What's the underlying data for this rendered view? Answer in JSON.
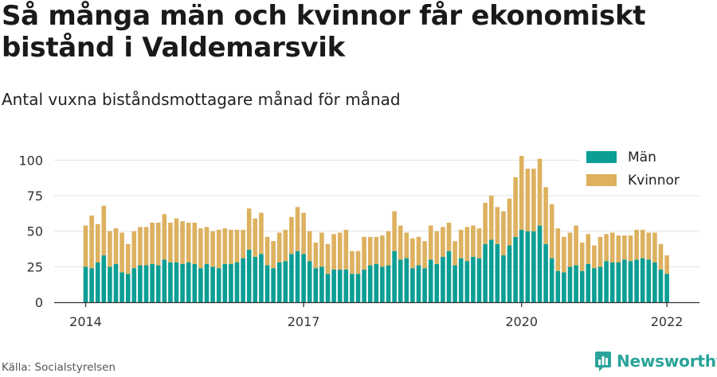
{
  "header": {
    "title": "Så många män och kvinnor får ekonomiskt bistånd i Valdemarsvik",
    "subtitle": "Antal vuxna biståndsmottagare månad för månad"
  },
  "footer": {
    "source": "Källa: Socialstyrelsen",
    "brand": "Newsworthy"
  },
  "colors": {
    "men": "#0b9e94",
    "women": "#ddb15f",
    "grid": "#e2e2e2",
    "axis": "#333333",
    "brand": "#2aa39a"
  },
  "chart_data": {
    "type": "bar",
    "stacked": true,
    "x_start": "2014-01",
    "x_ticks": [
      "2014",
      "2017",
      "2020",
      "2022"
    ],
    "y_ticks": [
      0,
      25,
      50,
      75,
      100
    ],
    "ylim": [
      0,
      110
    ],
    "grid": true,
    "legend_position": "top-right",
    "series": [
      {
        "name": "Män",
        "values": [
          25,
          24,
          28,
          33,
          25,
          27,
          21,
          20,
          24,
          26,
          26,
          27,
          26,
          30,
          28,
          28,
          27,
          28,
          27,
          24,
          27,
          25,
          24,
          27,
          27,
          28,
          31,
          37,
          32,
          34,
          26,
          24,
          28,
          29,
          34,
          36,
          34,
          29,
          24,
          25,
          20,
          23,
          23,
          23,
          20,
          20,
          23,
          26,
          27,
          25,
          26,
          36,
          30,
          31,
          24,
          26,
          24,
          30,
          27,
          32,
          36,
          26,
          31,
          29,
          32,
          31,
          41,
          44,
          41,
          33,
          40,
          46,
          51,
          50,
          50,
          54,
          41,
          31,
          22,
          21,
          25,
          26,
          22,
          27,
          24,
          25,
          29,
          28,
          28,
          30,
          29,
          30,
          31,
          30,
          28,
          23,
          20
        ]
      },
      {
        "name": "Kvinnor",
        "values": [
          29,
          37,
          27,
          35,
          25,
          25,
          28,
          21,
          26,
          27,
          27,
          29,
          30,
          32,
          28,
          31,
          30,
          28,
          29,
          28,
          26,
          25,
          27,
          25,
          24,
          23,
          20,
          29,
          27,
          29,
          20,
          19,
          21,
          22,
          26,
          31,
          29,
          21,
          18,
          24,
          21,
          25,
          26,
          28,
          16,
          16,
          23,
          20,
          19,
          22,
          24,
          28,
          24,
          18,
          21,
          20,
          19,
          24,
          23,
          21,
          20,
          17,
          20,
          24,
          22,
          21,
          29,
          31,
          26,
          31,
          33,
          42,
          52,
          44,
          44,
          47,
          40,
          38,
          30,
          25,
          24,
          28,
          20,
          21,
          16,
          21,
          19,
          21,
          19,
          17,
          18,
          21,
          20,
          19,
          21,
          18,
          13
        ]
      }
    ]
  }
}
